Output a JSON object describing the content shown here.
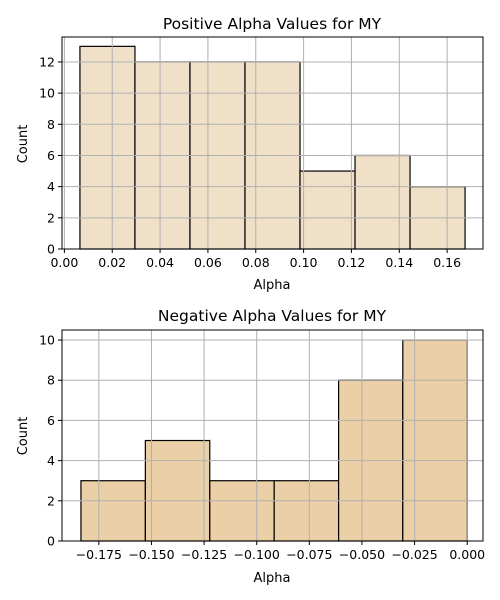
{
  "chart_data": [
    {
      "type": "bar",
      "title": "Positive Alpha Values for MY",
      "xlabel": "Alpha",
      "ylabel": "Count",
      "color": "#f0e0c8",
      "grid": true,
      "xlim": [
        -0.001,
        0.175
      ],
      "ylim": [
        0,
        13.6
      ],
      "xticks": [
        0.0,
        0.02,
        0.04,
        0.06,
        0.08,
        0.1,
        0.12,
        0.14,
        0.16
      ],
      "xtick_labels": [
        "0.00",
        "0.02",
        "0.04",
        "0.06",
        "0.08",
        "0.10",
        "0.12",
        "0.14",
        "0.16"
      ],
      "yticks": [
        0,
        2,
        4,
        6,
        8,
        10,
        12
      ],
      "ytick_labels": [
        "0",
        "2",
        "4",
        "6",
        "8",
        "10",
        "12"
      ],
      "bins": [
        {
          "x0": 0.0065,
          "x1": 0.0295,
          "value": 13
        },
        {
          "x0": 0.0295,
          "x1": 0.0525,
          "value": 12
        },
        {
          "x0": 0.0525,
          "x1": 0.0755,
          "value": 12
        },
        {
          "x0": 0.0755,
          "x1": 0.0985,
          "value": 12
        },
        {
          "x0": 0.0985,
          "x1": 0.1215,
          "value": 5
        },
        {
          "x0": 0.1215,
          "x1": 0.1445,
          "value": 6
        },
        {
          "x0": 0.1445,
          "x1": 0.1675,
          "value": 4
        }
      ]
    },
    {
      "type": "bar",
      "title": "Negative Alpha Values for MY",
      "xlabel": "Alpha",
      "ylabel": "Count",
      "color": "#ebcfa6",
      "grid": true,
      "xlim": [
        -0.1925,
        0.0075
      ],
      "ylim": [
        0,
        10.5
      ],
      "xticks": [
        -0.175,
        -0.15,
        -0.125,
        -0.1,
        -0.075,
        -0.05,
        -0.025,
        0.0
      ],
      "xtick_labels": [
        "−0.175",
        "−0.150",
        "−0.125",
        "−0.100",
        "−0.075",
        "−0.050",
        "−0.025",
        "0.000"
      ],
      "yticks": [
        0,
        2,
        4,
        6,
        8,
        10
      ],
      "ytick_labels": [
        "0",
        "2",
        "4",
        "6",
        "8",
        "10"
      ],
      "bins": [
        {
          "x0": -0.1835,
          "x1": -0.1529,
          "value": 3
        },
        {
          "x0": -0.1529,
          "x1": -0.1223,
          "value": 5
        },
        {
          "x0": -0.1223,
          "x1": -0.0917,
          "value": 3
        },
        {
          "x0": -0.0917,
          "x1": -0.0611,
          "value": 3
        },
        {
          "x0": -0.0611,
          "x1": -0.0306,
          "value": 8
        },
        {
          "x0": -0.0306,
          "x1": 0.0,
          "value": 10
        }
      ]
    }
  ]
}
